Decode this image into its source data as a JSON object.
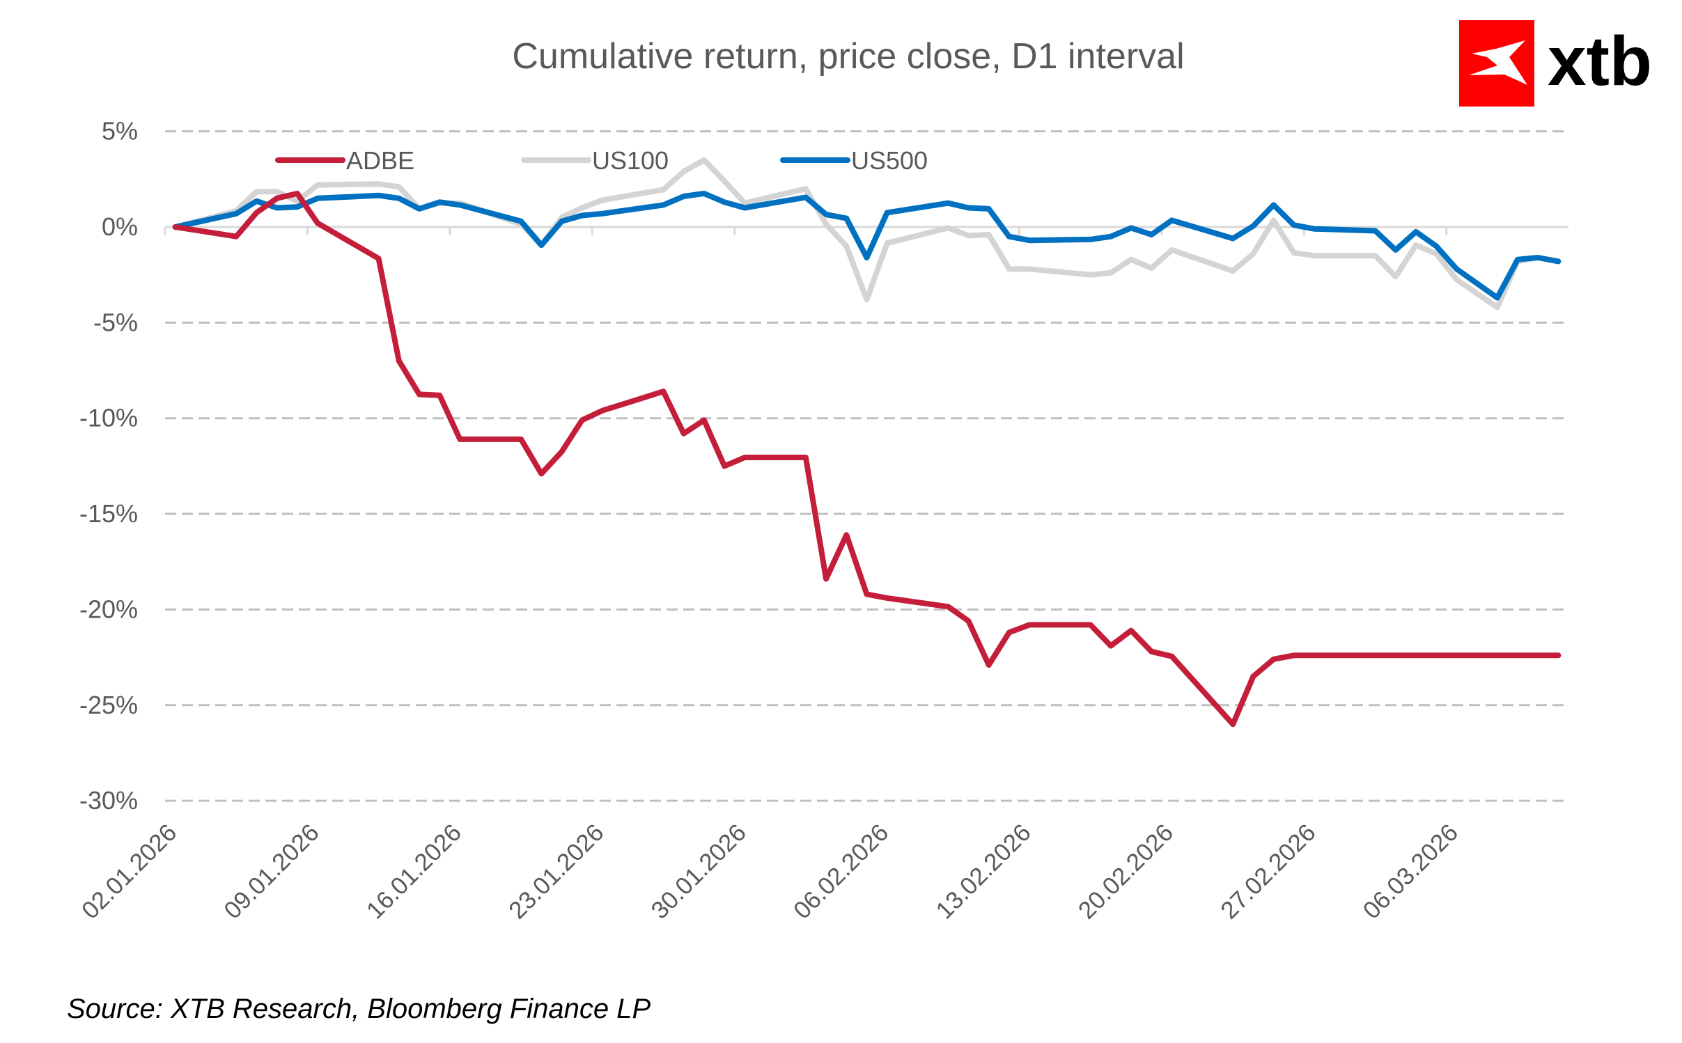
{
  "header": {
    "title": "Cumulative return, price close, D1 interval",
    "logo_text": "xtb",
    "logo_color": "#ff0000"
  },
  "footer": {
    "source": "Source: XTB Research, Bloomberg Finance LP"
  },
  "chart_data": {
    "type": "line",
    "title": "Cumulative return, price close, D1 interval",
    "xlabel": "",
    "ylabel": "",
    "ylim": [
      -30,
      5
    ],
    "y_ticks": [
      5,
      0,
      -5,
      -10,
      -15,
      -20,
      -25,
      -30
    ],
    "y_tick_labels": [
      "5%",
      "0%",
      "-5%",
      "-10%",
      "-15%",
      "-20%",
      "-25%",
      "-30%"
    ],
    "x_tick_labels": [
      "02.01.2026",
      "09.01.2026",
      "16.01.2026",
      "23.01.2026",
      "30.01.2026",
      "06.02.2026",
      "13.02.2026",
      "20.02.2026",
      "27.02.2026",
      "06.03.2026"
    ],
    "x_range": [
      "02.01.2026",
      "11.03.2026"
    ],
    "grid": "horizontal dashed",
    "legend_position": "top-left",
    "x": [
      "02.01.2026",
      "05.01.2026",
      "06.01.2026",
      "07.01.2026",
      "08.01.2026",
      "09.01.2026",
      "12.01.2026",
      "13.01.2026",
      "14.01.2026",
      "15.01.2026",
      "16.01.2026",
      "19.01.2026",
      "20.01.2026",
      "21.01.2026",
      "22.01.2026",
      "23.01.2026",
      "26.01.2026",
      "27.01.2026",
      "28.01.2026",
      "29.01.2026",
      "30.01.2026",
      "02.02.2026",
      "03.02.2026",
      "04.02.2026",
      "05.02.2026",
      "06.02.2026",
      "09.02.2026",
      "10.02.2026",
      "11.02.2026",
      "12.02.2026",
      "13.02.2026",
      "16.02.2026",
      "17.02.2026",
      "18.02.2026",
      "19.02.2026",
      "20.02.2026",
      "23.02.2026",
      "24.02.2026",
      "25.02.2026",
      "26.02.2026",
      "27.02.2026",
      "02.03.2026",
      "03.03.2026",
      "04.03.2026",
      "05.03.2026",
      "06.03.2026",
      "08.03.2026",
      "09.03.2026",
      "10.03.2026",
      "11.03.2026"
    ],
    "series": [
      {
        "name": "ADBE",
        "color": "#c41e3a",
        "values": [
          0,
          -0.5,
          0.75,
          1.5,
          1.75,
          0.2,
          -1.65,
          -7.0,
          -8.75,
          -8.8,
          -11.1,
          -11.1,
          -12.9,
          -11.75,
          -10.1,
          -9.6,
          -8.6,
          -10.8,
          -10.1,
          -12.5,
          -12.05,
          -12.05,
          -18.4,
          -16.1,
          -19.2,
          -19.4,
          -19.85,
          -20.6,
          -22.9,
          -21.2,
          -20.8,
          -20.8,
          -21.9,
          -21.1,
          -22.2,
          -22.45,
          -26.0,
          -23.5,
          -22.6,
          -22.4,
          -22.4,
          -22.4,
          -22.4,
          -22.4,
          -22.4,
          -22.4,
          -22.4,
          -22.4,
          -22.4,
          -22.4
        ]
      },
      {
        "name": "US100",
        "color": "#d4d4d4",
        "values": [
          0,
          0.85,
          1.85,
          1.85,
          1.35,
          2.2,
          2.25,
          2.1,
          0.95,
          1.25,
          1.25,
          0.15,
          -0.95,
          0.5,
          1.0,
          1.4,
          1.95,
          2.9,
          3.5,
          2.4,
          1.25,
          2.0,
          0.15,
          -1.0,
          -3.8,
          -0.85,
          -0.05,
          -0.45,
          -0.4,
          -2.2,
          -2.2,
          -2.5,
          -2.4,
          -1.7,
          -2.15,
          -1.2,
          -2.3,
          -1.4,
          0.35,
          -1.35,
          -1.5,
          -1.5,
          -2.6,
          -0.95,
          -1.4,
          -2.75,
          -4.2,
          -1.8,
          -1.6,
          -1.8
        ]
      },
      {
        "name": "US500",
        "color": "#0070c0",
        "values": [
          0,
          0.7,
          1.35,
          1.0,
          1.05,
          1.5,
          1.65,
          1.5,
          0.95,
          1.3,
          1.15,
          0.3,
          -0.95,
          0.3,
          0.6,
          0.7,
          1.15,
          1.6,
          1.75,
          1.3,
          1.0,
          1.55,
          0.65,
          0.45,
          -1.6,
          0.75,
          1.25,
          1.0,
          0.95,
          -0.5,
          -0.7,
          -0.65,
          -0.5,
          -0.05,
          -0.4,
          0.35,
          -0.6,
          0.05,
          1.15,
          0.1,
          -0.1,
          -0.2,
          -1.2,
          -0.25,
          -1.0,
          -2.2,
          -3.7,
          -1.7,
          -1.6,
          -1.8
        ]
      }
    ],
    "draw_order": [
      "US100",
      "US500",
      "ADBE"
    ]
  }
}
